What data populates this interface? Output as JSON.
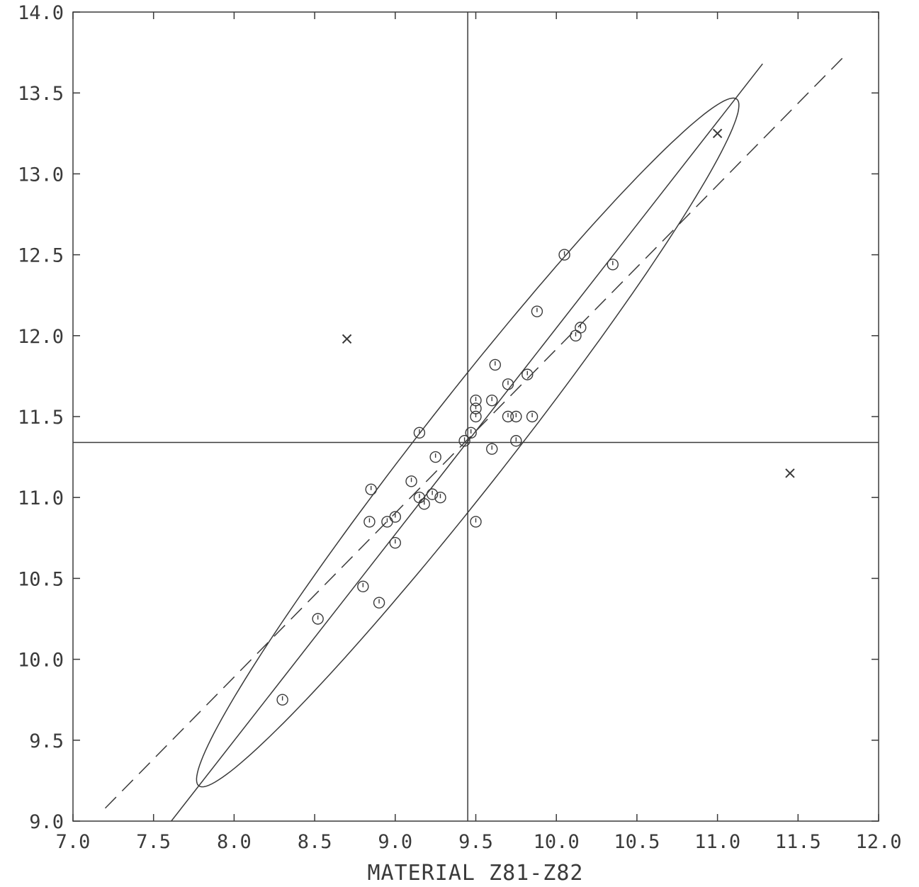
{
  "chart_data": {
    "type": "scatter",
    "title": "",
    "xlabel": "MATERIAL Z81-Z82",
    "ylabel": "",
    "xlim": [
      7.0,
      12.0
    ],
    "ylim": [
      9.0,
      14.0
    ],
    "xticks": [
      7.0,
      7.5,
      8.0,
      8.5,
      9.0,
      9.5,
      10.0,
      10.5,
      11.0,
      11.5,
      12.0
    ],
    "yticks": [
      9.0,
      9.5,
      10.0,
      10.5,
      11.0,
      11.5,
      12.0,
      12.5,
      13.0,
      13.5,
      14.0
    ],
    "xtick_labels": [
      "7.0",
      "7.5",
      "8.0",
      "8.5",
      "9.0",
      "9.5",
      "10.0",
      "10.5",
      "11.0",
      "11.5",
      "12.0"
    ],
    "ytick_labels": [
      "9.0",
      "9.5",
      "10.0",
      "10.5",
      "11.0",
      "11.5",
      "12.0",
      "12.5",
      "13.0",
      "13.5",
      "14.0"
    ],
    "grid": false,
    "points": [
      {
        "x": 8.3,
        "y": 9.75
      },
      {
        "x": 8.52,
        "y": 10.25
      },
      {
        "x": 8.8,
        "y": 10.45
      },
      {
        "x": 8.9,
        "y": 10.35
      },
      {
        "x": 8.84,
        "y": 10.85
      },
      {
        "x": 8.85,
        "y": 11.05
      },
      {
        "x": 8.95,
        "y": 10.85
      },
      {
        "x": 9.0,
        "y": 10.72
      },
      {
        "x": 9.0,
        "y": 10.88
      },
      {
        "x": 9.1,
        "y": 11.1
      },
      {
        "x": 9.15,
        "y": 11.0
      },
      {
        "x": 9.18,
        "y": 10.96
      },
      {
        "x": 9.23,
        "y": 11.02
      },
      {
        "x": 9.28,
        "y": 11.0
      },
      {
        "x": 9.25,
        "y": 11.25
      },
      {
        "x": 9.15,
        "y": 11.4
      },
      {
        "x": 9.43,
        "y": 11.35
      },
      {
        "x": 9.47,
        "y": 11.4
      },
      {
        "x": 9.5,
        "y": 10.85
      },
      {
        "x": 9.5,
        "y": 11.5
      },
      {
        "x": 9.5,
        "y": 11.55
      },
      {
        "x": 9.5,
        "y": 11.6
      },
      {
        "x": 9.6,
        "y": 11.3
      },
      {
        "x": 9.6,
        "y": 11.6
      },
      {
        "x": 9.62,
        "y": 11.82
      },
      {
        "x": 9.7,
        "y": 11.5
      },
      {
        "x": 9.7,
        "y": 11.7
      },
      {
        "x": 9.75,
        "y": 11.5
      },
      {
        "x": 9.75,
        "y": 11.35
      },
      {
        "x": 9.82,
        "y": 11.76
      },
      {
        "x": 9.85,
        "y": 11.5
      },
      {
        "x": 9.88,
        "y": 12.15
      },
      {
        "x": 10.05,
        "y": 12.5
      },
      {
        "x": 10.12,
        "y": 12.0
      },
      {
        "x": 10.15,
        "y": 12.05
      },
      {
        "x": 10.35,
        "y": 12.44
      }
    ],
    "outliers": [
      {
        "x": 8.7,
        "y": 11.98
      },
      {
        "x": 11.0,
        "y": 13.25
      },
      {
        "x": 11.45,
        "y": 11.15
      }
    ],
    "median_x": 9.45,
    "median_y": 11.34,
    "solid_line": [
      {
        "x": 7.61,
        "y": 9.0
      },
      {
        "x": 11.28,
        "y": 13.68
      }
    ],
    "dashed_line": [
      {
        "x": 7.2,
        "y": 9.08
      },
      {
        "x": 11.78,
        "y": 13.72
      }
    ],
    "ellipse": {
      "center": {
        "x": 9.45,
        "y": 11.34
      },
      "semi_major": 2.7,
      "semi_minor": 0.27,
      "angle_deg": 51.8
    }
  }
}
